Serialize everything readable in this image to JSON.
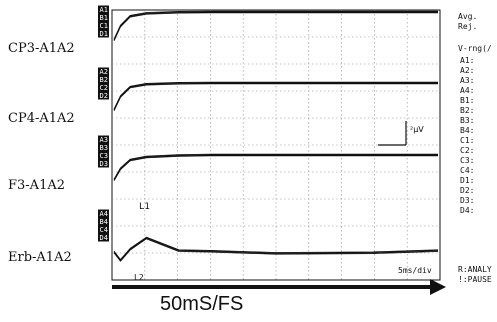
{
  "channels": [
    {
      "label": "CP3-A1A2",
      "codes": [
        "A1",
        "B1",
        "C1",
        "D1"
      ]
    },
    {
      "label": "CP4-A1A2",
      "codes": [
        "A2",
        "B2",
        "C2",
        "D2"
      ]
    },
    {
      "label": "F3-A1A2",
      "codes": [
        "A3",
        "B3",
        "C3",
        "D3"
      ]
    },
    {
      "label": "Erb-A1A2",
      "codes": [
        "A4",
        "B4",
        "C4",
        "D4"
      ]
    }
  ],
  "side_panel": {
    "avg_label": "Avg.",
    "rej_label": "Rej.",
    "vrng_label": "V-rng(/",
    "vrng_items": [
      "A1:",
      "A2:",
      "A3:",
      "A4:",
      "B1:",
      "B2:",
      "B3:",
      "B4:",
      "C1:",
      "C2:",
      "C3:",
      "C4:",
      "D1:",
      "D2:",
      "D3:",
      "D4:"
    ],
    "analyze_text": "R:ANALY",
    "pause_text": "!:PAUSE"
  },
  "timebase_text": "5ms/div",
  "scale_bar_text": "²μV",
  "peak_labels": {
    "l1": "L1",
    "l2": "L2"
  },
  "footer_text": "50mS/FS",
  "colors": {
    "ink": "#111111",
    "grid": "#8a8a8a",
    "background": "#ffffff"
  },
  "chart_data": {
    "type": "line",
    "xlabel": "",
    "ylabel": "",
    "time_divisions": 10,
    "vertical_divisions": 10,
    "x": [
      0,
      0.2,
      0.5,
      1,
      2,
      3,
      5,
      8,
      10
    ],
    "traces": [
      {
        "channel": "CP3-A1A2",
        "y": [
          0,
          0.5,
          0.85,
          0.95,
          0.99,
          1.0,
          1.0,
          1.0,
          1.0
        ]
      },
      {
        "channel": "CP4-A1A2",
        "y": [
          0,
          0.5,
          0.85,
          0.95,
          0.99,
          1.0,
          1.0,
          1.0,
          1.0
        ]
      },
      {
        "channel": "F3-A1A2",
        "y": [
          0,
          0.45,
          0.8,
          0.92,
          0.98,
          1.0,
          1.0,
          1.0,
          1.0
        ]
      },
      {
        "channel": "Erb-A1A2",
        "y": [
          0,
          -0.6,
          0.2,
          1.0,
          0.1,
          0.05,
          -0.1,
          -0.05,
          0.1
        ]
      }
    ]
  }
}
